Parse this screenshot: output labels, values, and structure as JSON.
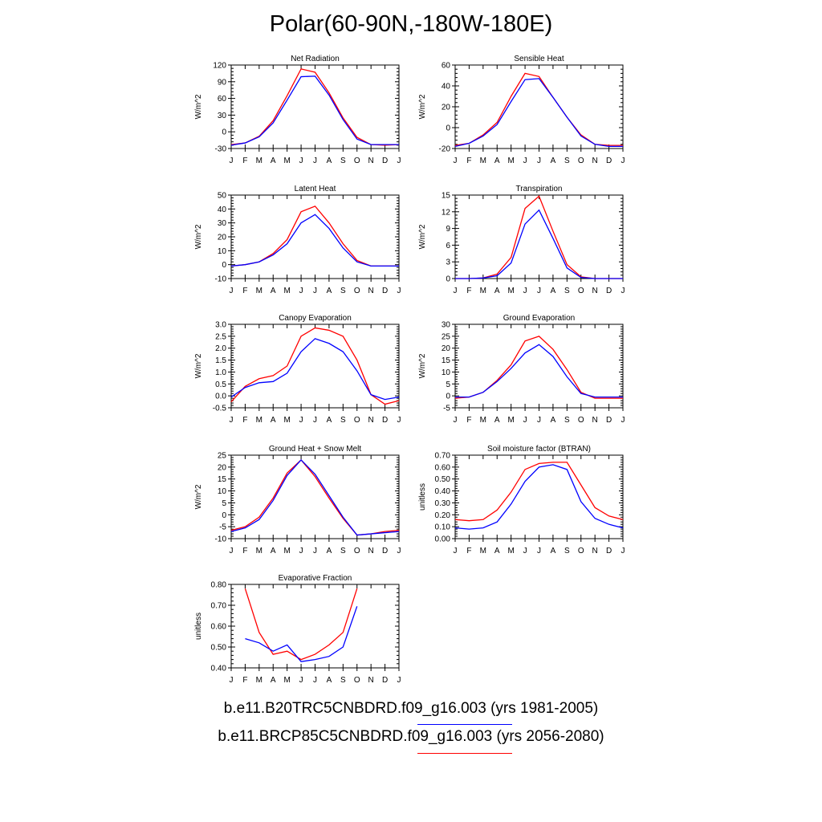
{
  "title": "Polar(60-90N,-180W-180E)",
  "months": [
    "J",
    "F",
    "M",
    "A",
    "M",
    "J",
    "J",
    "A",
    "S",
    "O",
    "N",
    "D",
    "J"
  ],
  "colors": {
    "historical": "#0000ff",
    "future": "#ff0000"
  },
  "legend": [
    {
      "label": "b.e11.B20TRC5CNBDRD.f09_g16.003 (yrs 1981-2005)",
      "color": "#0000ff"
    },
    {
      "label": "b.e11.BRCP85C5CNBDRD.f09_g16.003 (yrs 2056-2080)",
      "color": "#ff0000"
    }
  ],
  "chart_data": [
    {
      "type": "line",
      "title": "Net Radiation",
      "ylabel": "W/m^2",
      "ylim": [
        -30,
        120
      ],
      "yticks": [
        "-30",
        "0",
        "30",
        "60",
        "90",
        "120"
      ],
      "ytick_values": [
        -30,
        0,
        30,
        60,
        90,
        120
      ],
      "series": [
        {
          "color": "#ff0000",
          "values": [
            -23,
            -20,
            -8,
            20,
            65,
            113,
            107,
            70,
            25,
            -10,
            -23,
            -24,
            -23
          ]
        },
        {
          "color": "#0000ff",
          "values": [
            -24,
            -20,
            -9,
            16,
            57,
            99,
            100,
            66,
            22,
            -13,
            -23,
            -23,
            -23
          ]
        }
      ]
    },
    {
      "type": "line",
      "title": "Sensible Heat",
      "ylabel": "W/m^2",
      "ylim": [
        -20,
        60
      ],
      "yticks": [
        "-20",
        "0",
        "20",
        "40",
        "60"
      ],
      "ytick_values": [
        -20,
        0,
        20,
        40,
        60
      ],
      "series": [
        {
          "color": "#ff0000",
          "values": [
            -17,
            -15,
            -7,
            5,
            30,
            52,
            49,
            29,
            10,
            -7,
            -16,
            -17,
            -17
          ]
        },
        {
          "color": "#0000ff",
          "values": [
            -18,
            -15,
            -8,
            3,
            25,
            46,
            47,
            29,
            10,
            -8,
            -16,
            -18,
            -18
          ]
        }
      ]
    },
    {
      "type": "line",
      "title": "Latent Heat",
      "ylabel": "W/m^2",
      "ylim": [
        -10,
        50
      ],
      "yticks": [
        "-10",
        "0",
        "10",
        "20",
        "30",
        "40",
        "50"
      ],
      "ytick_values": [
        -10,
        0,
        10,
        20,
        30,
        40,
        50
      ],
      "series": [
        {
          "color": "#ff0000",
          "values": [
            -1,
            0,
            2,
            8,
            18,
            38,
            42,
            30,
            15,
            3,
            -1,
            -1,
            -1
          ]
        },
        {
          "color": "#0000ff",
          "values": [
            -1,
            0,
            2,
            7,
            15,
            30,
            36,
            26,
            12,
            2,
            -1,
            -1,
            -1
          ]
        }
      ]
    },
    {
      "type": "line",
      "title": "Transpiration",
      "ylabel": "W/m^2",
      "ylim": [
        0,
        15
      ],
      "yticks": [
        "0",
        "3",
        "6",
        "9",
        "12",
        "15"
      ],
      "ytick_values": [
        0,
        3,
        6,
        9,
        12,
        15
      ],
      "series": [
        {
          "color": "#ff0000",
          "values": [
            0,
            0,
            0.1,
            0.8,
            3.8,
            12.6,
            14.8,
            8.5,
            2.5,
            0.3,
            0,
            0,
            0
          ]
        },
        {
          "color": "#0000ff",
          "values": [
            0,
            0,
            0.1,
            0.5,
            2.8,
            9.8,
            12.3,
            7.2,
            1.9,
            0.2,
            0,
            0,
            0
          ]
        }
      ]
    },
    {
      "type": "line",
      "title": "Canopy Evaporation",
      "ylabel": "W/m^2",
      "ylim": [
        -0.5,
        3.0
      ],
      "yticks": [
        "-0.5",
        "0.0",
        "0.5",
        "1.0",
        "1.5",
        "2.0",
        "2.5",
        "3.0"
      ],
      "ytick_values": [
        -0.5,
        0,
        0.5,
        1,
        1.5,
        2,
        2.5,
        3
      ],
      "series": [
        {
          "color": "#ff0000",
          "values": [
            -0.25,
            0.4,
            0.72,
            0.85,
            1.25,
            2.5,
            2.85,
            2.75,
            2.5,
            1.5,
            0.05,
            -0.35,
            -0.2
          ]
        },
        {
          "color": "#0000ff",
          "values": [
            -0.05,
            0.35,
            0.55,
            0.6,
            0.95,
            1.85,
            2.4,
            2.2,
            1.85,
            1.05,
            0.05,
            -0.15,
            -0.05
          ]
        }
      ]
    },
    {
      "type": "line",
      "title": "Ground Evaporation",
      "ylabel": "W/m^2",
      "ylim": [
        -5,
        30
      ],
      "yticks": [
        "-5",
        "0",
        "5",
        "10",
        "15",
        "20",
        "25",
        "30"
      ],
      "ytick_values": [
        -5,
        0,
        5,
        10,
        15,
        20,
        25,
        30
      ],
      "series": [
        {
          "color": "#ff0000",
          "values": [
            -1,
            -0.5,
            1.5,
            6.5,
            13,
            23,
            25,
            19.5,
            11,
            1.5,
            -1,
            -1,
            -1
          ]
        },
        {
          "color": "#0000ff",
          "values": [
            -0.5,
            -0.5,
            1.5,
            6,
            11.5,
            18,
            21.5,
            16.5,
            8,
            1,
            -0.5,
            -0.5,
            -0.5
          ]
        }
      ]
    },
    {
      "type": "line",
      "title": "Ground Heat + Snow Melt",
      "ylabel": "W/m^2",
      "ylim": [
        -10,
        25
      ],
      "yticks": [
        "-10",
        "-5",
        "0",
        "5",
        "10",
        "15",
        "20",
        "25"
      ],
      "ytick_values": [
        -10,
        -5,
        0,
        5,
        10,
        15,
        20,
        25
      ],
      "series": [
        {
          "color": "#ff0000",
          "values": [
            -6.5,
            -5,
            -1,
            7,
            17.5,
            23,
            16,
            7,
            -1.5,
            -8.5,
            -8,
            -7,
            -6.5
          ]
        },
        {
          "color": "#0000ff",
          "values": [
            -7,
            -5.5,
            -2,
            6,
            16.5,
            23,
            17,
            8,
            -1,
            -8.5,
            -8,
            -7.5,
            -7
          ]
        }
      ]
    },
    {
      "type": "line",
      "title": "Soil moisture factor (BTRAN)",
      "ylabel": "unitless",
      "ylim": [
        0.0,
        0.7
      ],
      "yticks": [
        "0.00",
        "0.10",
        "0.20",
        "0.30",
        "0.40",
        "0.50",
        "0.60",
        "0.70"
      ],
      "ytick_values": [
        0,
        0.1,
        0.2,
        0.3,
        0.4,
        0.5,
        0.6,
        0.7
      ],
      "series": [
        {
          "color": "#ff0000",
          "values": [
            0.16,
            0.15,
            0.16,
            0.24,
            0.39,
            0.58,
            0.63,
            0.64,
            0.64,
            0.45,
            0.26,
            0.19,
            0.16
          ]
        },
        {
          "color": "#0000ff",
          "values": [
            0.09,
            0.08,
            0.09,
            0.14,
            0.29,
            0.48,
            0.6,
            0.62,
            0.58,
            0.31,
            0.17,
            0.12,
            0.09
          ]
        }
      ]
    },
    {
      "type": "line",
      "title": "Evaporative Fraction",
      "ylabel": "unitless",
      "ylim": [
        0.4,
        0.8
      ],
      "yticks": [
        "0.40",
        "0.50",
        "0.60",
        "0.70",
        "0.80"
      ],
      "ytick_values": [
        0.4,
        0.5,
        0.6,
        0.7,
        0.8
      ],
      "series": [
        {
          "color": "#ff0000",
          "values": [
            null,
            0.78,
            0.57,
            0.465,
            0.48,
            0.44,
            0.465,
            0.51,
            0.57,
            0.78,
            null,
            null,
            null
          ]
        },
        {
          "color": "#0000ff",
          "values": [
            null,
            0.54,
            0.52,
            0.48,
            0.51,
            0.43,
            0.44,
            0.455,
            0.5,
            0.695,
            null,
            null,
            null
          ]
        }
      ]
    }
  ]
}
